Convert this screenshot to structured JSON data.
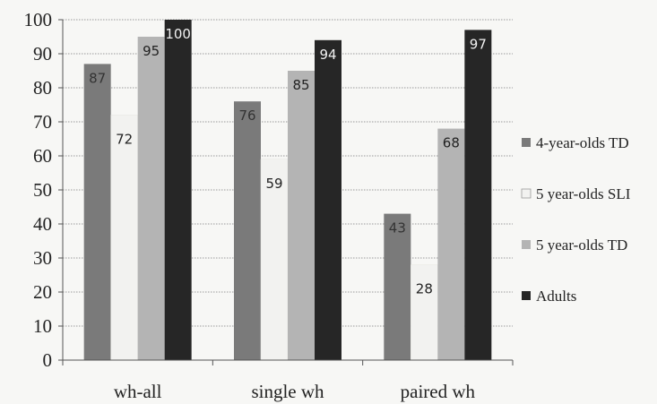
{
  "chart_data": {
    "type": "bar",
    "categories": [
      "wh-all",
      "single wh",
      "paired wh"
    ],
    "series": [
      {
        "name": "4-year-olds TD",
        "values": [
          87,
          76,
          43
        ],
        "color": "#7a7a7a"
      },
      {
        "name": "5 year-olds SLI",
        "values": [
          72,
          59,
          28
        ],
        "color": "#f2f2f0"
      },
      {
        "name": "5 year-olds TD",
        "values": [
          95,
          85,
          68
        ],
        "color": "#b4b4b4"
      },
      {
        "name": "Adults",
        "values": [
          100,
          94,
          97
        ],
        "color": "#262626"
      }
    ],
    "ylim": [
      0,
      100
    ],
    "yticks": [
      0,
      10,
      20,
      30,
      40,
      50,
      60,
      70,
      80,
      90,
      100
    ],
    "grid": true,
    "legend_position": "right"
  }
}
